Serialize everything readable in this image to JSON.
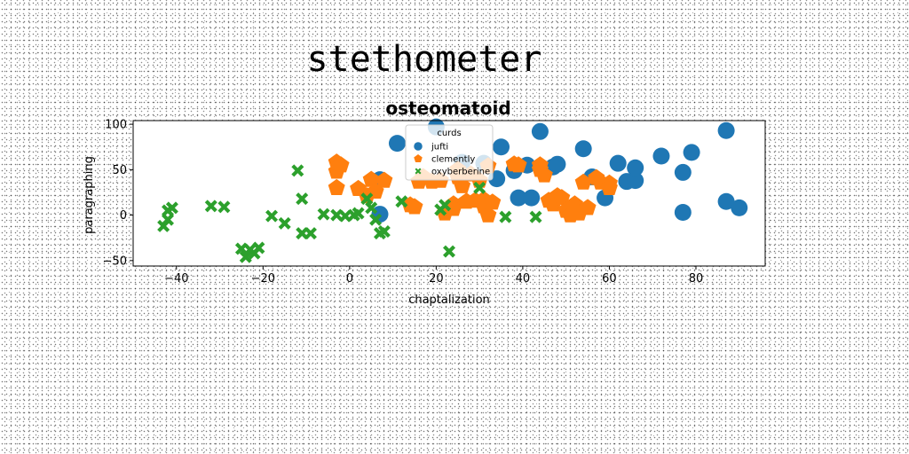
{
  "chart_data": {
    "type": "scatter",
    "suptitle": "stethometer",
    "title": "osteomatoid",
    "xlabel": "chaptalization",
    "ylabel": "paragraphing",
    "xlim": [
      -50,
      96
    ],
    "ylim": [
      -56,
      104
    ],
    "xticks": [
      -40,
      -20,
      0,
      20,
      40,
      60,
      80
    ],
    "yticks": [
      -50,
      0,
      50,
      100
    ],
    "grid": false,
    "legend": {
      "title": "curds",
      "placement": "top-center"
    },
    "series": [
      {
        "name": "jufti",
        "color": "#1f77b4",
        "marker": "circle",
        "points": [
          [
            7,
            39
          ],
          [
            7,
            1
          ],
          [
            11,
            79
          ],
          [
            20,
            97
          ],
          [
            26,
            58
          ],
          [
            31,
            57
          ],
          [
            34,
            40
          ],
          [
            35,
            75
          ],
          [
            38,
            49
          ],
          [
            39,
            19
          ],
          [
            41,
            55
          ],
          [
            42,
            19
          ],
          [
            44,
            92
          ],
          [
            47,
            53
          ],
          [
            48,
            56
          ],
          [
            54,
            73
          ],
          [
            56,
            42
          ],
          [
            59,
            19
          ],
          [
            62,
            57
          ],
          [
            64,
            37
          ],
          [
            66,
            38
          ],
          [
            66,
            52
          ],
          [
            72,
            65
          ],
          [
            77,
            3
          ],
          [
            77,
            47
          ],
          [
            79,
            69
          ],
          [
            87,
            93
          ],
          [
            87,
            15
          ],
          [
            90,
            8
          ]
        ]
      },
      {
        "name": "clemently",
        "color": "#ff7f0e",
        "marker": "pentagon",
        "points": [
          [
            -3,
            30
          ],
          [
            -3,
            48
          ],
          [
            -3,
            58
          ],
          [
            -2,
            55
          ],
          [
            2,
            29
          ],
          [
            4,
            21
          ],
          [
            5,
            39
          ],
          [
            6,
            26
          ],
          [
            8,
            38
          ],
          [
            14,
            11
          ],
          [
            15,
            9
          ],
          [
            16,
            37
          ],
          [
            17,
            42
          ],
          [
            19,
            37
          ],
          [
            21,
            38
          ],
          [
            22,
            2
          ],
          [
            24,
            12
          ],
          [
            24,
            7
          ],
          [
            25,
            42
          ],
          [
            25,
            50
          ],
          [
            26,
            32
          ],
          [
            27,
            15
          ],
          [
            28,
            45
          ],
          [
            29,
            16
          ],
          [
            30,
            38
          ],
          [
            31,
            17
          ],
          [
            31,
            10
          ],
          [
            32,
            54
          ],
          [
            32,
            0
          ],
          [
            33,
            14
          ],
          [
            38,
            56
          ],
          [
            39,
            55
          ],
          [
            44,
            50
          ],
          [
            44,
            55
          ],
          [
            45,
            44
          ],
          [
            46,
            16
          ],
          [
            47,
            12
          ],
          [
            48,
            21
          ],
          [
            49,
            19
          ],
          [
            50,
            5
          ],
          [
            51,
            0
          ],
          [
            52,
            12
          ],
          [
            53,
            2
          ],
          [
            54,
            36
          ],
          [
            55,
            8
          ],
          [
            57,
            41
          ],
          [
            58,
            36
          ],
          [
            60,
            35
          ],
          [
            60,
            30
          ]
        ]
      },
      {
        "name": "oxyberberine",
        "color": "#2ca02c",
        "marker": "x",
        "points": [
          [
            -43,
            -12
          ],
          [
            -42,
            -5
          ],
          [
            -42,
            5
          ],
          [
            -41,
            8
          ],
          [
            -32,
            10
          ],
          [
            -29,
            9
          ],
          [
            -25,
            -37
          ],
          [
            -24,
            -46
          ],
          [
            -23,
            -38
          ],
          [
            -22,
            -42
          ],
          [
            -21,
            -36
          ],
          [
            -18,
            -1
          ],
          [
            -15,
            -9
          ],
          [
            -12,
            49
          ],
          [
            -11,
            18
          ],
          [
            -11,
            -20
          ],
          [
            -9,
            -20
          ],
          [
            -6,
            1
          ],
          [
            -3,
            0
          ],
          [
            -1,
            -1
          ],
          [
            1,
            0
          ],
          [
            2,
            2
          ],
          [
            4,
            18
          ],
          [
            5,
            8
          ],
          [
            6,
            -5
          ],
          [
            7,
            -20
          ],
          [
            8,
            -18
          ],
          [
            12,
            15
          ],
          [
            21,
            6
          ],
          [
            22,
            11
          ],
          [
            23,
            -40
          ],
          [
            30,
            30
          ],
          [
            36,
            -2
          ],
          [
            43,
            -2
          ]
        ]
      }
    ]
  }
}
